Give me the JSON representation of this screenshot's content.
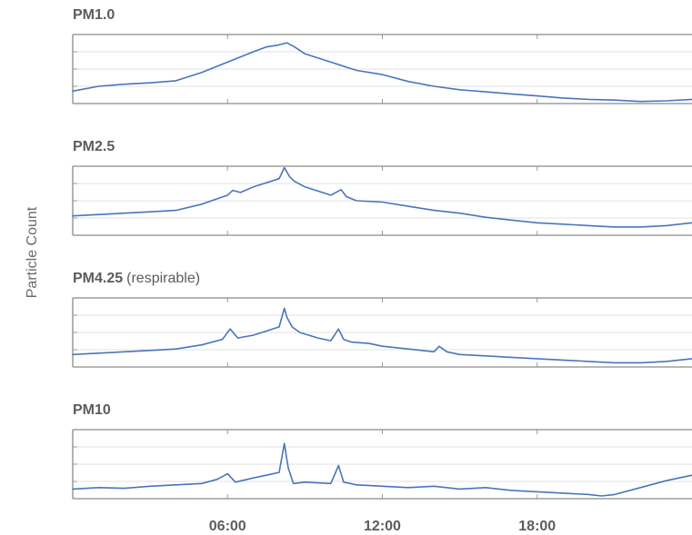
{
  "chart_data": {
    "type": "line",
    "ylabel": "Particle Count",
    "y_tick_labels_shown": false,
    "x_ticks": [
      "06:00",
      "12:00",
      "18:00"
    ],
    "xlim_hours": [
      0,
      24
    ],
    "grid": true,
    "line_color": "#4a74bd",
    "panels": [
      {
        "title": "PM1.0",
        "title_suffix": "",
        "ylim": [
          0,
          1
        ],
        "series": [
          {
            "x": [
              0,
              1,
              2,
              3,
              4,
              5,
              6,
              7,
              7.5,
              8,
              8.3,
              8.6,
              9,
              10,
              11,
              12,
              13,
              14,
              15,
              16,
              17,
              18,
              19,
              20,
              21,
              22,
              23,
              24
            ],
            "y": [
              0.18,
              0.25,
              0.28,
              0.3,
              0.33,
              0.45,
              0.6,
              0.75,
              0.82,
              0.85,
              0.88,
              0.82,
              0.72,
              0.6,
              0.48,
              0.42,
              0.32,
              0.25,
              0.2,
              0.17,
              0.14,
              0.11,
              0.08,
              0.06,
              0.05,
              0.03,
              0.04,
              0.06
            ]
          }
        ]
      },
      {
        "title": "PM2.5",
        "title_suffix": "",
        "ylim": [
          0,
          1
        ],
        "series": [
          {
            "x": [
              0,
              1,
              2,
              3,
              4,
              5,
              6,
              6.2,
              6.5,
              7,
              7.5,
              8,
              8.2,
              8.4,
              8.6,
              9,
              10,
              10.4,
              10.6,
              11,
              12,
              13,
              14,
              15,
              16,
              17,
              18,
              19,
              20,
              21,
              22,
              23,
              24
            ],
            "y": [
              0.28,
              0.3,
              0.32,
              0.34,
              0.36,
              0.45,
              0.58,
              0.65,
              0.62,
              0.7,
              0.76,
              0.82,
              0.98,
              0.85,
              0.78,
              0.7,
              0.58,
              0.66,
              0.56,
              0.5,
              0.48,
              0.42,
              0.36,
              0.32,
              0.26,
              0.22,
              0.18,
              0.16,
              0.14,
              0.12,
              0.12,
              0.14,
              0.18
            ]
          }
        ]
      },
      {
        "title": "PM4.25",
        "title_suffix": "(respirable)",
        "ylim": [
          0,
          1
        ],
        "series": [
          {
            "x": [
              0,
              1,
              2,
              3,
              4,
              5,
              5.8,
              6.1,
              6.4,
              7,
              7.5,
              8,
              8.2,
              8.3,
              8.5,
              8.8,
              9.5,
              10,
              10.3,
              10.5,
              10.8,
              11.5,
              12,
              13,
              14,
              14.2,
              14.5,
              15,
              16,
              17,
              18,
              19,
              20,
              21,
              22,
              23,
              24
            ],
            "y": [
              0.18,
              0.2,
              0.22,
              0.24,
              0.26,
              0.32,
              0.4,
              0.55,
              0.42,
              0.46,
              0.52,
              0.58,
              0.85,
              0.72,
              0.58,
              0.5,
              0.42,
              0.38,
              0.55,
              0.4,
              0.36,
              0.34,
              0.3,
              0.26,
              0.22,
              0.3,
              0.22,
              0.18,
              0.16,
              0.14,
              0.12,
              0.1,
              0.08,
              0.06,
              0.06,
              0.08,
              0.12
            ]
          }
        ]
      },
      {
        "title": "PM10",
        "title_suffix": "",
        "ylim": [
          0,
          1
        ],
        "series": [
          {
            "x": [
              0,
              1,
              2,
              3,
              4,
              5,
              5.6,
              6,
              6.3,
              7,
              7.5,
              8,
              8.2,
              8.35,
              8.55,
              9,
              10,
              10.3,
              10.5,
              11,
              12,
              13,
              14,
              15,
              16,
              17,
              18,
              19,
              20,
              20.5,
              21,
              22,
              23,
              24
            ],
            "y": [
              0.14,
              0.16,
              0.15,
              0.18,
              0.2,
              0.22,
              0.28,
              0.36,
              0.24,
              0.3,
              0.34,
              0.38,
              0.8,
              0.45,
              0.22,
              0.24,
              0.22,
              0.48,
              0.24,
              0.2,
              0.18,
              0.16,
              0.18,
              0.14,
              0.16,
              0.12,
              0.1,
              0.08,
              0.06,
              0.04,
              0.06,
              0.16,
              0.26,
              0.34
            ]
          }
        ]
      }
    ]
  }
}
